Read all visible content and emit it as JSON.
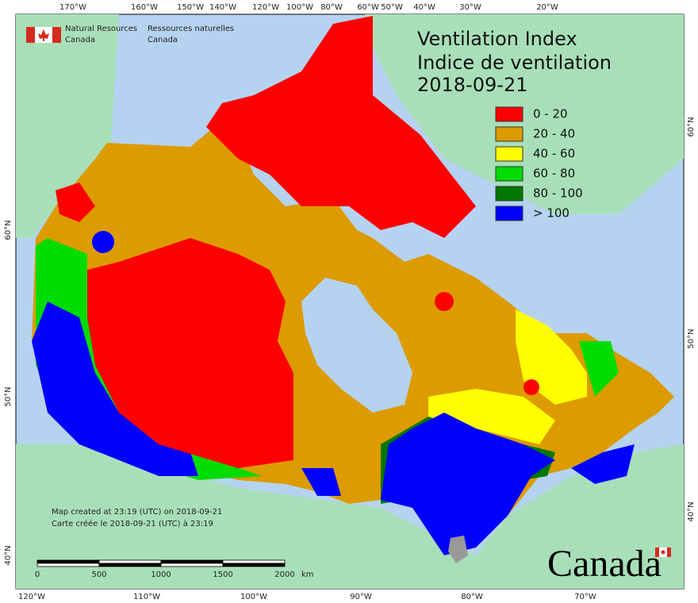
{
  "header": {
    "agency_en": [
      "Natural Resources",
      "Canada"
    ],
    "agency_fr": [
      "Ressources naturelles",
      "Canada"
    ]
  },
  "title": [
    "Ventilation Index",
    "Indice de ventilation",
    "2018-09-21"
  ],
  "legend": [
    {
      "label": "0 - 20",
      "color": "#ff0000"
    },
    {
      "label": "20 - 40",
      "color": "#dc9b00"
    },
    {
      "label": "40 - 60",
      "color": "#ffff00"
    },
    {
      "label": "60 - 80",
      "color": "#00dc00"
    },
    {
      "label": "80 - 100",
      "color": "#007800"
    },
    {
      "label": "> 100",
      "color": "#0000ff"
    }
  ],
  "top_labels": [
    "170°W",
    "160°W",
    "150°W",
    "140°W",
    "120°W",
    "100°W",
    "80°W",
    "60°W",
    "50°W",
    "40°W",
    "30°W",
    "20°W"
  ],
  "bottom_labels": [
    "120°W",
    "110°W",
    "100°W",
    "90°W",
    "80°W",
    "70°W"
  ],
  "left_labels": [
    "60°N",
    "50°N",
    "40°N"
  ],
  "right_labels": [
    "60°N",
    "50°N",
    "40°N"
  ],
  "credits": [
    "Map created at 23:19 (UTC) on 2018-09-21",
    "Carte créée le 2018-09-21 (UTC) à 23:19"
  ],
  "scale_bar": {
    "ticks": [
      "0",
      "500",
      "1000",
      "1500",
      "2000"
    ],
    "unit": "km"
  },
  "wordmark": "Canada"
}
